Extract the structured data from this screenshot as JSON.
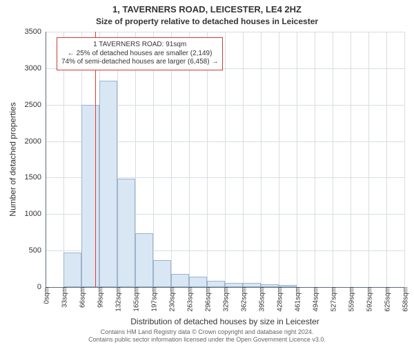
{
  "title_line1": "1, TAVERNERS ROAD, LEICESTER, LE4 2HZ",
  "title_line2": "Size of property relative to detached houses in Leicester",
  "ylabel": "Number of detached properties",
  "xlabel": "Distribution of detached houses by size in Leicester",
  "footer_line1": "Contains HM Land Registry data © Crown copyright and database right 2024.",
  "footer_line2": "Contains public sector information licensed under the Open Government Licence v3.0.",
  "chart": {
    "type": "bar",
    "ylim": [
      0,
      3500
    ],
    "yticks": [
      0,
      500,
      1000,
      1500,
      2000,
      2500,
      3000,
      3500
    ],
    "xticks": [
      "0sqm",
      "33sqm",
      "66sqm",
      "99sqm",
      "132sqm",
      "165sqm",
      "197sqm",
      "230sqm",
      "263sqm",
      "296sqm",
      "329sqm",
      "362sqm",
      "395sqm",
      "428sqm",
      "461sqm",
      "494sqm",
      "527sqm",
      "559sqm",
      "592sqm",
      "625sqm",
      "658sqm"
    ],
    "categories_x": [
      0,
      33,
      66,
      99,
      132,
      165,
      197,
      230,
      263,
      296,
      329,
      362,
      395,
      428,
      461,
      494,
      527,
      559,
      592,
      625,
      658
    ],
    "xmax": 658,
    "bin_width_sqm": 33,
    "values": [
      0,
      470,
      2500,
      2830,
      1490,
      740,
      370,
      180,
      140,
      90,
      60,
      55,
      40,
      30,
      0,
      0,
      0,
      0,
      0,
      0
    ],
    "bar_fill": "#d9e6f4",
    "bar_border": "#9ab4cc",
    "grid_color": "#d6dde3",
    "axis_color": "#5b6b7a",
    "background": "#ffffff",
    "marker": {
      "x_sqm": 91,
      "color": "#e23a2f"
    },
    "label_fontsize": 12,
    "tick_fontsize": 11
  },
  "annotation": {
    "line1": "1 TAVERNERS ROAD: 91sqm",
    "line2": "← 25% of detached houses are smaller (2,149)",
    "line3": "74% of semi-detached houses are larger (6,458) →",
    "border_color": "#cd3a32"
  }
}
